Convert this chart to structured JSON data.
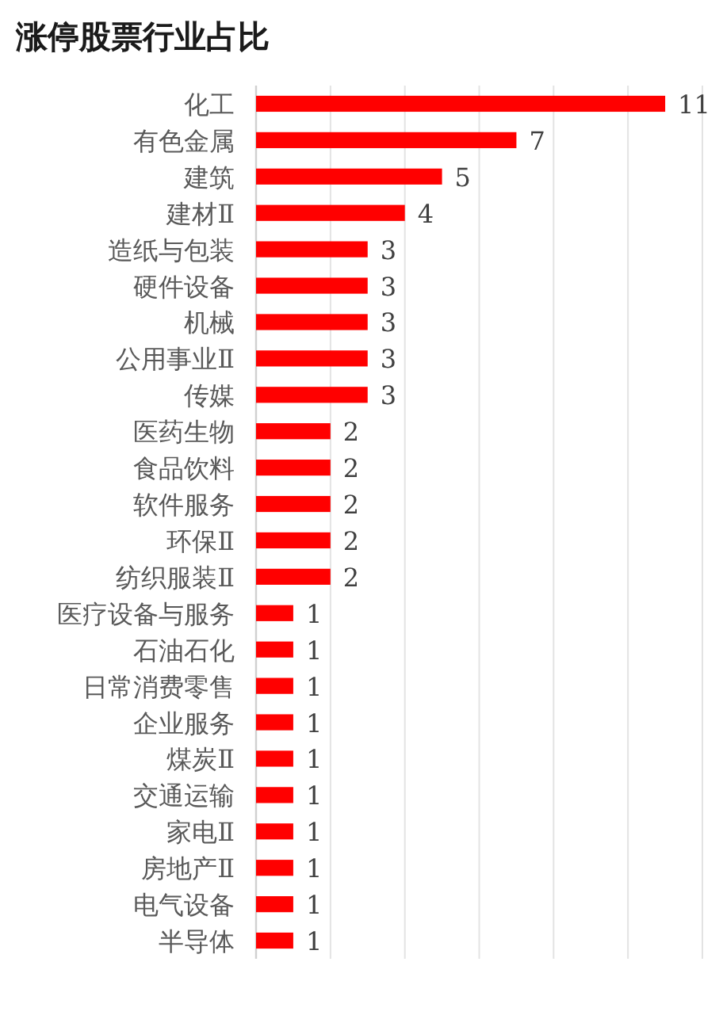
{
  "chart_data": {
    "type": "bar",
    "orientation": "horizontal",
    "title": "涨停股票行业占比",
    "categories": [
      "化工",
      "有色金属",
      "建筑",
      "建材Ⅱ",
      "造纸与包装",
      "硬件设备",
      "机械",
      "公用事业Ⅱ",
      "传媒",
      "医药生物",
      "食品饮料",
      "软件服务",
      "环保Ⅱ",
      "纺织服装Ⅱ",
      "医疗设备与服务",
      "石油石化",
      "日常消费零售",
      "企业服务",
      "煤炭Ⅱ",
      "交通运输",
      "家电Ⅱ",
      "房地产Ⅱ",
      "电气设备",
      "半导体"
    ],
    "values": [
      11,
      7,
      5,
      4,
      3,
      3,
      3,
      3,
      3,
      2,
      2,
      2,
      2,
      2,
      1,
      1,
      1,
      1,
      1,
      1,
      1,
      1,
      1,
      1
    ],
    "color": "#ff0000",
    "xlim": [
      0,
      12
    ],
    "xticks": [
      {
        "value": 0,
        "label": null
      },
      {
        "value": 2,
        "label": null
      },
      {
        "value": 4,
        "label": null
      },
      {
        "value": 6,
        "label": null
      },
      {
        "value": 8,
        "label": null
      },
      {
        "value": 10,
        "label": null
      },
      {
        "value": 12,
        "label": null
      }
    ],
    "grid": "x",
    "tick_labels": "y",
    "data_labels": true
  }
}
